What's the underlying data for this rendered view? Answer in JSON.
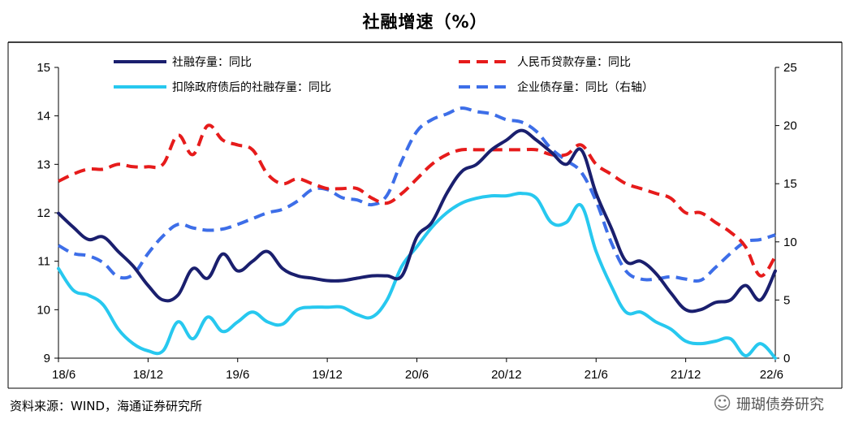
{
  "chart_data": {
    "type": "line",
    "title": "社融增速（%）",
    "x_labels": [
      "18/6",
      "18/12",
      "19/6",
      "19/12",
      "20/6",
      "20/12",
      "21/6",
      "21/12",
      "22/6"
    ],
    "x_range": [
      0,
      48
    ],
    "y_left": {
      "min": 9,
      "max": 15,
      "ticks": [
        "9",
        "10",
        "11",
        "12",
        "13",
        "14",
        "15"
      ]
    },
    "y_right": {
      "min": 0,
      "max": 25,
      "ticks": [
        "0",
        "5",
        "10",
        "15",
        "20",
        "25"
      ]
    },
    "legend": [
      {
        "name": "社融存量：同比",
        "color": "#1a1f6e",
        "dash": false
      },
      {
        "name": "人民币贷款存量：同比",
        "color": "#e61b1b",
        "dash": true
      },
      {
        "name": "扣除政府债后的社融存量：同比",
        "color": "#27c8ef",
        "dash": false
      },
      {
        "name": "企业债存量：同比（右轴）",
        "color": "#3d6ee8",
        "dash": true
      }
    ],
    "series": [
      {
        "name": "社融存量：同比",
        "axis": "left",
        "color": "#1a1f6e",
        "dash": false,
        "x": [
          0,
          1,
          2,
          3,
          4,
          5,
          6,
          7,
          8,
          9,
          10,
          11,
          12,
          13,
          14,
          15,
          16,
          17,
          18,
          19,
          20,
          21,
          22,
          23,
          24,
          25,
          26,
          27,
          28,
          29,
          30,
          31,
          32,
          33,
          34,
          35,
          36,
          37,
          38,
          39,
          40,
          41,
          42,
          43,
          44,
          45,
          46,
          47,
          48
        ],
        "values": [
          11.99,
          11.7,
          11.45,
          11.5,
          11.2,
          10.9,
          10.5,
          10.2,
          10.3,
          10.85,
          10.65,
          11.15,
          10.8,
          11.0,
          11.2,
          10.85,
          10.7,
          10.65,
          10.6,
          10.6,
          10.65,
          10.7,
          10.7,
          10.7,
          11.5,
          11.8,
          12.4,
          12.85,
          13.0,
          13.3,
          13.5,
          13.7,
          13.5,
          13.25,
          13.0,
          13.3,
          12.4,
          11.7,
          11.0,
          11.0,
          10.75,
          10.35,
          10.0,
          10.0,
          10.15,
          10.2,
          10.5,
          10.2,
          10.8
        ]
      },
      {
        "name": "人民币贷款存量：同比",
        "axis": "left",
        "color": "#e61b1b",
        "dash": true,
        "x": [
          0,
          1,
          2,
          3,
          4,
          5,
          6,
          7,
          8,
          9,
          10,
          11,
          12,
          13,
          14,
          15,
          16,
          17,
          18,
          19,
          20,
          21,
          22,
          23,
          24,
          25,
          26,
          27,
          28,
          29,
          30,
          31,
          32,
          33,
          34,
          35,
          36,
          37,
          38,
          39,
          40,
          41,
          42,
          43,
          44,
          45,
          46,
          47,
          48
        ],
        "values": [
          12.65,
          12.8,
          12.9,
          12.9,
          13.0,
          12.95,
          12.95,
          13.0,
          13.6,
          13.2,
          13.8,
          13.5,
          13.4,
          13.3,
          12.8,
          12.6,
          12.7,
          12.6,
          12.5,
          12.5,
          12.5,
          12.3,
          12.2,
          12.4,
          12.7,
          13.0,
          13.2,
          13.3,
          13.3,
          13.3,
          13.3,
          13.3,
          13.3,
          13.2,
          13.2,
          13.4,
          13.0,
          12.8,
          12.6,
          12.5,
          12.4,
          12.3,
          12.0,
          12.0,
          11.8,
          11.6,
          11.3,
          10.7,
          11.1
        ]
      },
      {
        "name": "扣除政府债后的社融存量：同比",
        "axis": "left",
        "color": "#27c8ef",
        "dash": false,
        "x": [
          0,
          1,
          2,
          3,
          4,
          5,
          6,
          7,
          8,
          9,
          10,
          11,
          12,
          13,
          14,
          15,
          16,
          17,
          18,
          19,
          20,
          21,
          22,
          23,
          24,
          25,
          26,
          27,
          28,
          29,
          30,
          31,
          32,
          33,
          34,
          35,
          36,
          37,
          38,
          39,
          40,
          41,
          42,
          43,
          44,
          45,
          46,
          47,
          48
        ],
        "values": [
          10.85,
          10.4,
          10.3,
          10.1,
          9.6,
          9.3,
          9.15,
          9.15,
          9.75,
          9.4,
          9.85,
          9.55,
          9.75,
          9.95,
          9.75,
          9.7,
          10.0,
          10.05,
          10.05,
          10.05,
          9.9,
          9.85,
          10.2,
          10.9,
          11.3,
          11.7,
          12.0,
          12.2,
          12.3,
          12.35,
          12.35,
          12.4,
          12.3,
          11.8,
          11.8,
          12.15,
          11.2,
          10.5,
          9.95,
          9.95,
          9.75,
          9.6,
          9.35,
          9.3,
          9.35,
          9.4,
          9.05,
          9.3,
          9.0
        ]
      },
      {
        "name": "企业债存量：同比（右轴）",
        "axis": "right",
        "color": "#3d6ee8",
        "dash": true,
        "x": [
          0,
          1,
          2,
          3,
          4,
          5,
          6,
          7,
          8,
          9,
          10,
          11,
          12,
          13,
          14,
          15,
          16,
          17,
          18,
          19,
          20,
          21,
          22,
          23,
          24,
          25,
          26,
          27,
          28,
          29,
          30,
          31,
          32,
          33,
          34,
          35,
          36,
          37,
          38,
          39,
          40,
          41,
          42,
          43,
          44,
          45,
          46,
          47,
          48
        ],
        "values": [
          9.7,
          9.0,
          8.8,
          8.2,
          7.0,
          7.2,
          9.0,
          10.5,
          11.5,
          11.2,
          11.0,
          11.1,
          11.5,
          12.0,
          12.5,
          12.8,
          13.5,
          14.5,
          14.5,
          13.8,
          13.6,
          13.2,
          14.0,
          17.0,
          19.5,
          20.5,
          21.0,
          21.5,
          21.2,
          21.0,
          20.5,
          20.3,
          19.5,
          18.0,
          17.0,
          16.0,
          13.5,
          10.0,
          7.5,
          6.8,
          6.8,
          7.0,
          6.8,
          6.7,
          7.8,
          9.0,
          10.0,
          10.2,
          10.6
        ]
      }
    ]
  },
  "footer": {
    "source": "资料来源：WIND，海通证券研究所",
    "brand": "珊瑚债券研究",
    "brand_icon": "wechat-icon"
  }
}
